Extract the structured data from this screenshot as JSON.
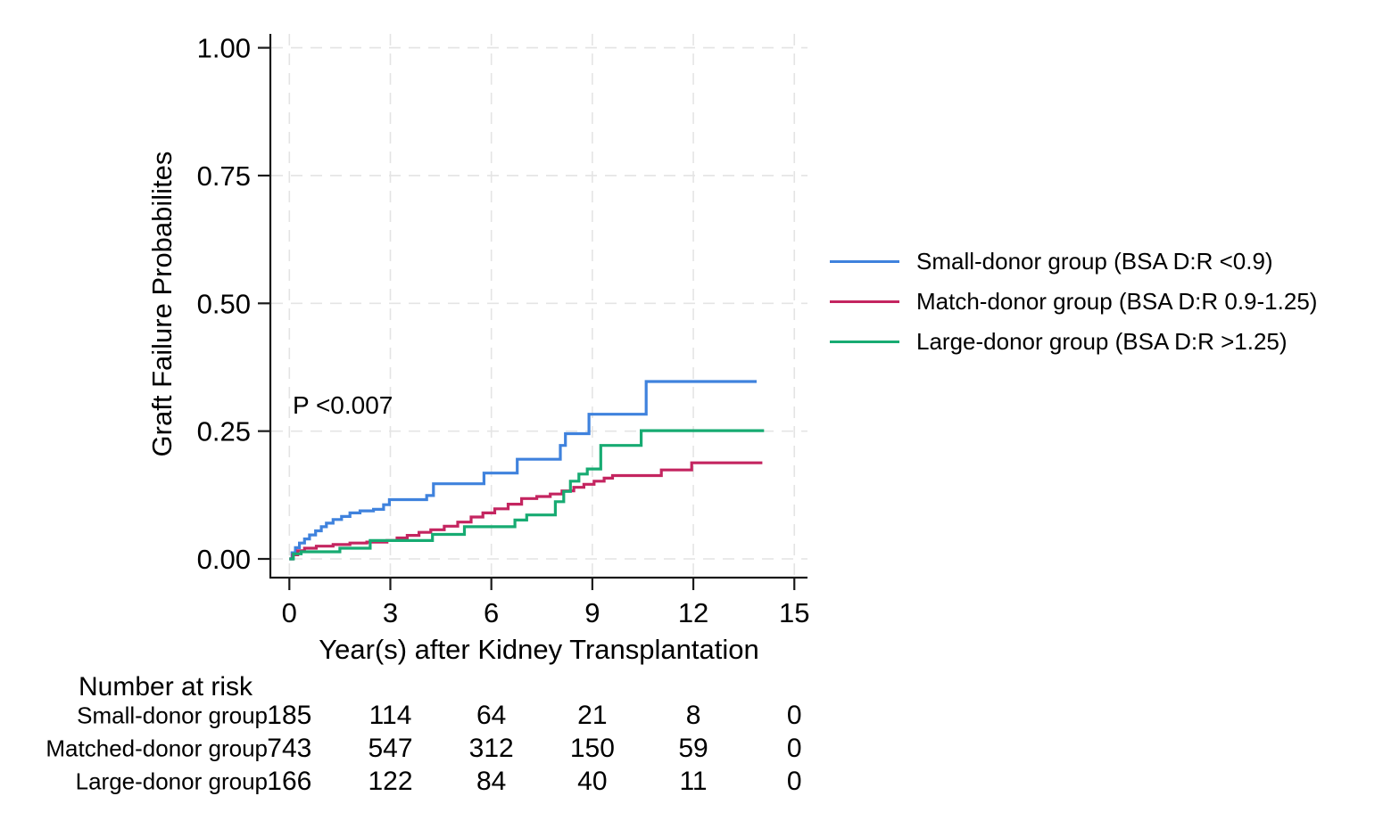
{
  "chart_data": {
    "type": "line",
    "subtype": "kaplan-meier-step",
    "title": "",
    "xlabel": "Year(s) after Kidney Transplantation",
    "ylabel": "Graft Failure Probabilites",
    "annotation": "P <0.007",
    "xlim": [
      0,
      15
    ],
    "ylim": [
      0,
      1
    ],
    "x_ticks": [
      {
        "value": 0,
        "label": "0"
      },
      {
        "value": 3,
        "label": "3"
      },
      {
        "value": 6,
        "label": "6"
      },
      {
        "value": 9,
        "label": "9"
      },
      {
        "value": 12,
        "label": "12"
      },
      {
        "value": 15,
        "label": "15"
      }
    ],
    "y_ticks": [
      {
        "value": 0,
        "label": "0.00"
      },
      {
        "value": 0.25,
        "label": "0.25"
      },
      {
        "value": 0.5,
        "label": "0.50"
      },
      {
        "value": 0.75,
        "label": "0.75"
      },
      {
        "value": 1,
        "label": "1.00"
      }
    ],
    "grid": "dashed-major-both-axes",
    "grid_color": "#e4e4e4",
    "axis_color": "#1a1a1a",
    "legend_position": "right-middle",
    "series": [
      {
        "key": "small-donor",
        "name": "Small-donor group (BSA D:R <0.9)",
        "color": "#3f82dd",
        "end_x": 13.88,
        "steps": [
          [
            0,
            0
          ],
          [
            0.08,
            0.012
          ],
          [
            0.18,
            0.022
          ],
          [
            0.3,
            0.031
          ],
          [
            0.45,
            0.039
          ],
          [
            0.6,
            0.047
          ],
          [
            0.78,
            0.055
          ],
          [
            0.95,
            0.063
          ],
          [
            1.1,
            0.07
          ],
          [
            1.3,
            0.077
          ],
          [
            1.55,
            0.083
          ],
          [
            1.8,
            0.09
          ],
          [
            2.1,
            0.094
          ],
          [
            2.5,
            0.097
          ],
          [
            2.8,
            0.106
          ],
          [
            2.97,
            0.116
          ],
          [
            4.08,
            0.124
          ],
          [
            4.28,
            0.147
          ],
          [
            5.78,
            0.168
          ],
          [
            6.77,
            0.195
          ],
          [
            8.05,
            0.222
          ],
          [
            8.2,
            0.245
          ],
          [
            8.9,
            0.283
          ],
          [
            10.6,
            0.347
          ]
        ]
      },
      {
        "key": "match-donor",
        "name": "Match-donor group (BSA D:R 0.9-1.25)",
        "color": "#c42560",
        "end_x": 14.05,
        "steps": [
          [
            0,
            0
          ],
          [
            0.1,
            0.008
          ],
          [
            0.25,
            0.016
          ],
          [
            0.45,
            0.021
          ],
          [
            0.8,
            0.025
          ],
          [
            1.3,
            0.028
          ],
          [
            1.8,
            0.031
          ],
          [
            2.3,
            0.033
          ],
          [
            2.9,
            0.036
          ],
          [
            3.2,
            0.041
          ],
          [
            3.5,
            0.046
          ],
          [
            3.85,
            0.052
          ],
          [
            4.2,
            0.057
          ],
          [
            4.6,
            0.064
          ],
          [
            5.0,
            0.072
          ],
          [
            5.4,
            0.082
          ],
          [
            5.75,
            0.09
          ],
          [
            6.1,
            0.098
          ],
          [
            6.5,
            0.107
          ],
          [
            6.9,
            0.118
          ],
          [
            7.35,
            0.122
          ],
          [
            7.75,
            0.127
          ],
          [
            8.1,
            0.133
          ],
          [
            8.45,
            0.14
          ],
          [
            8.75,
            0.146
          ],
          [
            9.05,
            0.152
          ],
          [
            9.35,
            0.158
          ],
          [
            9.6,
            0.163
          ],
          [
            11.05,
            0.174
          ],
          [
            11.95,
            0.188
          ]
        ]
      },
      {
        "key": "large-donor",
        "name": "Large-donor group (BSA D:R >1.25)",
        "color": "#17ab72",
        "end_x": 14.1,
        "steps": [
          [
            0,
            0
          ],
          [
            0.12,
            0.01
          ],
          [
            0.35,
            0.014
          ],
          [
            1.5,
            0.021
          ],
          [
            2.4,
            0.036
          ],
          [
            4.25,
            0.048
          ],
          [
            5.2,
            0.063
          ],
          [
            6.7,
            0.076
          ],
          [
            7.05,
            0.086
          ],
          [
            7.9,
            0.112
          ],
          [
            8.15,
            0.132
          ],
          [
            8.35,
            0.152
          ],
          [
            8.6,
            0.166
          ],
          [
            8.85,
            0.176
          ],
          [
            9.25,
            0.222
          ],
          [
            10.45,
            0.251
          ]
        ]
      }
    ]
  },
  "risk_table": {
    "title": "Number at risk",
    "time_points": [
      0,
      3,
      6,
      9,
      12,
      15
    ],
    "rows": [
      {
        "label": "Small-donor group",
        "counts": [
          185,
          114,
          64,
          21,
          8,
          0
        ]
      },
      {
        "label": "Matched-donor group",
        "counts": [
          743,
          547,
          312,
          150,
          59,
          0
        ]
      },
      {
        "label": "Large-donor group",
        "counts": [
          166,
          122,
          84,
          40,
          11,
          0
        ]
      }
    ]
  }
}
